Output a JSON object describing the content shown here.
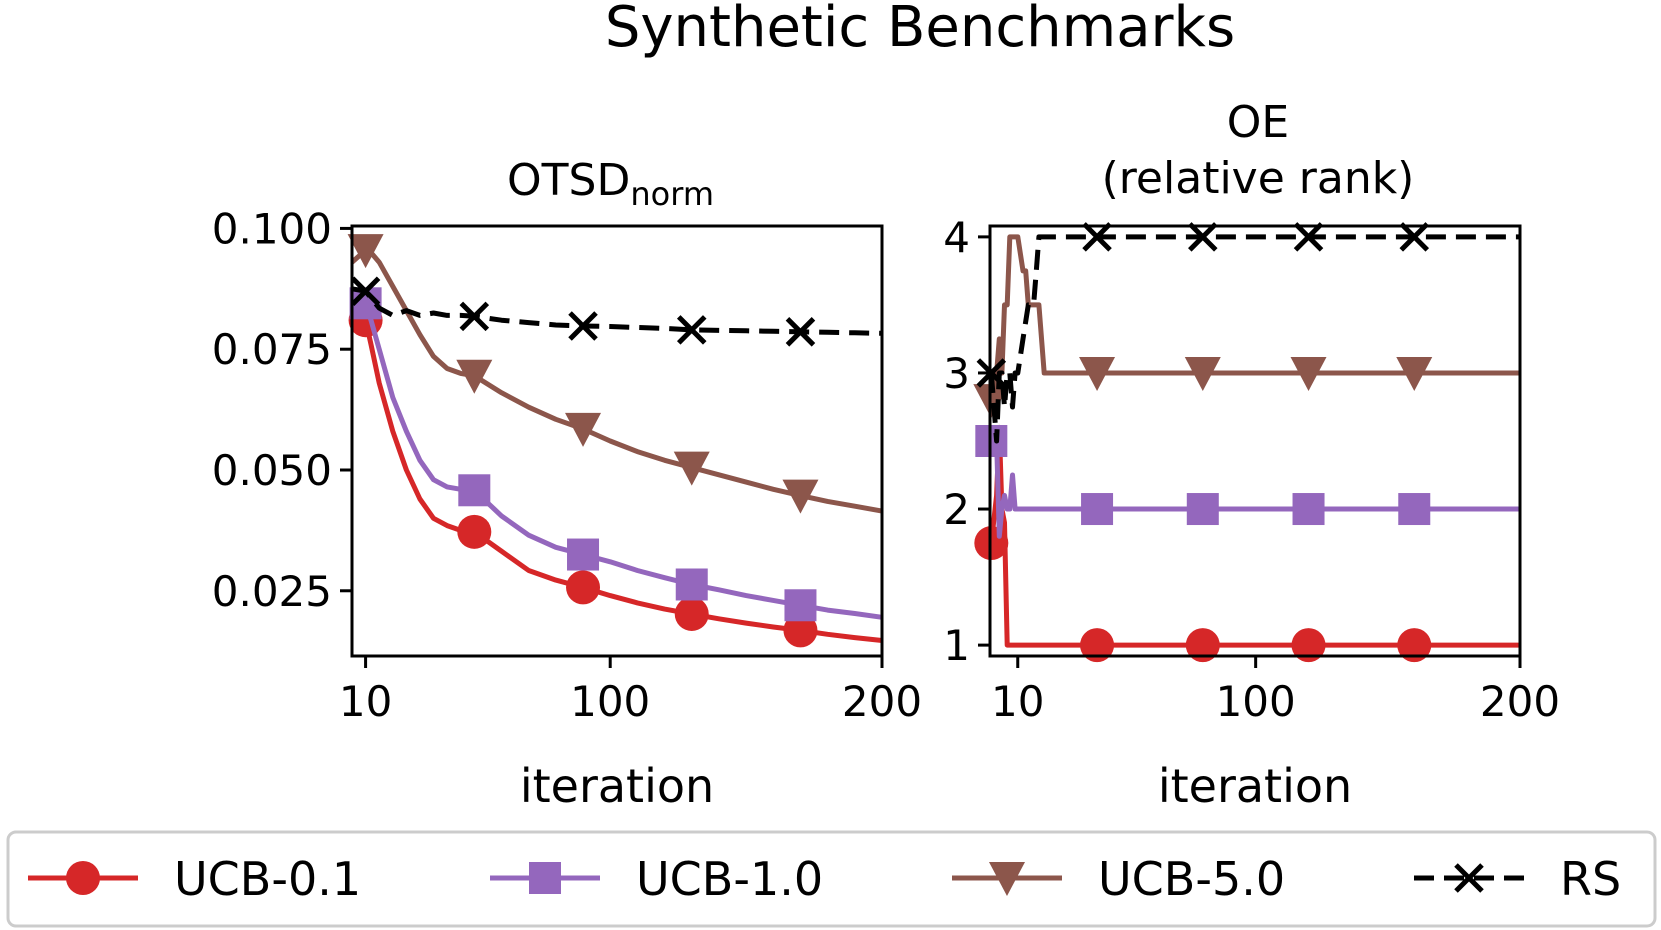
{
  "figure_title": "Synthetic Benchmarks",
  "colors": {
    "ucb01": "#d62728",
    "ucb10": "#9467bd",
    "ucb50": "#8c564b",
    "rs": "#000000"
  },
  "legend": [
    {
      "key": "ucb01",
      "label": "UCB-0.1",
      "marker": "circle",
      "dash": "solid"
    },
    {
      "key": "ucb10",
      "label": "UCB-1.0",
      "marker": "square",
      "dash": "solid"
    },
    {
      "key": "ucb50",
      "label": "UCB-5.0",
      "marker": "triangle-down",
      "dash": "solid"
    },
    {
      "key": "rs",
      "label": "RS",
      "marker": "x",
      "dash": "dashed"
    }
  ],
  "chart_data": [
    {
      "type": "line",
      "title": "OTSD",
      "title_subscript": "norm",
      "xlabel": "iteration",
      "ylabel": "",
      "xlim": [
        5,
        200
      ],
      "ylim": [
        0.0115,
        0.1005
      ],
      "xticks": [
        10,
        100,
        200
      ],
      "xtick_labels": [
        "10",
        "100",
        "200"
      ],
      "yticks": [
        0.025,
        0.05,
        0.075,
        0.1
      ],
      "ytick_labels": [
        "0.025",
        "0.050",
        "0.075",
        "0.100"
      ],
      "marker_x": [
        10,
        50,
        90,
        130,
        170
      ],
      "series": [
        {
          "key": "ucb01",
          "name": "UCB-0.1",
          "x": [
            10,
            12,
            15,
            20,
            25,
            30,
            35,
            40,
            45,
            50,
            60,
            70,
            80,
            90,
            100,
            110,
            120,
            130,
            140,
            150,
            160,
            170,
            180,
            190,
            200
          ],
          "y": [
            0.081,
            0.076,
            0.068,
            0.058,
            0.05,
            0.044,
            0.04,
            0.0385,
            0.0375,
            0.0372,
            0.0332,
            0.0292,
            0.0272,
            0.0257,
            0.024,
            0.0225,
            0.0212,
            0.0202,
            0.0192,
            0.0183,
            0.0175,
            0.0168,
            0.016,
            0.0153,
            0.0147
          ]
        },
        {
          "key": "ucb10",
          "name": "UCB-1.0",
          "x": [
            10,
            12,
            15,
            20,
            25,
            30,
            35,
            40,
            45,
            50,
            60,
            70,
            80,
            90,
            100,
            110,
            120,
            130,
            140,
            150,
            160,
            170,
            180,
            190,
            200
          ],
          "y": [
            0.0845,
            0.081,
            0.075,
            0.065,
            0.058,
            0.052,
            0.048,
            0.0465,
            0.046,
            0.0458,
            0.0405,
            0.0365,
            0.034,
            0.0325,
            0.031,
            0.0292,
            0.0277,
            0.0263,
            0.0252,
            0.024,
            0.023,
            0.022,
            0.021,
            0.0203,
            0.0195
          ]
        },
        {
          "key": "ucb50",
          "name": "UCB-5.0",
          "x": [
            5,
            10,
            12,
            15,
            20,
            25,
            30,
            35,
            40,
            45,
            50,
            60,
            70,
            80,
            90,
            100,
            110,
            120,
            130,
            140,
            150,
            160,
            170,
            180,
            190,
            200
          ],
          "y": [
            0.093,
            0.0955,
            0.095,
            0.093,
            0.088,
            0.083,
            0.078,
            0.0735,
            0.071,
            0.07,
            0.0695,
            0.066,
            0.063,
            0.0605,
            0.0585,
            0.056,
            0.0538,
            0.052,
            0.0505,
            0.049,
            0.0475,
            0.046,
            0.0447,
            0.0435,
            0.0425,
            0.0415
          ]
        },
        {
          "key": "rs",
          "name": "RS",
          "x": [
            5,
            10,
            15,
            20,
            25,
            30,
            35,
            40,
            45,
            50,
            60,
            70,
            80,
            90,
            100,
            110,
            120,
            130,
            140,
            150,
            160,
            170,
            180,
            190,
            200
          ],
          "y": [
            0.0875,
            0.087,
            0.0835,
            0.082,
            0.083,
            0.082,
            0.0825,
            0.082,
            0.082,
            0.0818,
            0.081,
            0.0805,
            0.08,
            0.0798,
            0.0797,
            0.0795,
            0.0793,
            0.079,
            0.0789,
            0.0788,
            0.0787,
            0.0786,
            0.0785,
            0.0784,
            0.0783
          ]
        }
      ]
    },
    {
      "type": "line",
      "title": "OE",
      "subtitle": "(relative rank)",
      "xlabel": "iteration",
      "ylabel": "",
      "xlim": [
        -0.5,
        200
      ],
      "ylim": [
        0.92,
        4.08
      ],
      "xticks": [
        10,
        100,
        200
      ],
      "xtick_labels": [
        "10",
        "100",
        "200"
      ],
      "yticks": [
        1,
        2,
        3,
        4
      ],
      "ytick_labels": [
        "1",
        "2",
        "3",
        "4"
      ],
      "marker_x": [
        0,
        40,
        80,
        120,
        160
      ],
      "series": [
        {
          "key": "ucb01",
          "name": "UCB-0.1",
          "x": [
            0,
            2,
            3,
            4,
            5,
            6,
            7,
            200
          ],
          "y": [
            1.75,
            2.1,
            2.6,
            2.0,
            1.9,
            1.0,
            1.0,
            1.0
          ]
        },
        {
          "key": "ucb10",
          "name": "UCB-1.0",
          "x": [
            0,
            2,
            3,
            4,
            5,
            6,
            7,
            8,
            9,
            10,
            200
          ],
          "y": [
            2.5,
            2.5,
            1.8,
            2.0,
            2.1,
            2.0,
            2.0,
            2.25,
            2.0,
            2.0,
            2.0
          ]
        },
        {
          "key": "ucb50",
          "name": "UCB-5.0",
          "x": [
            0,
            1,
            2,
            3,
            4,
            5,
            6,
            7,
            8,
            10,
            12,
            13,
            14,
            16,
            18,
            20,
            22,
            200
          ],
          "y": [
            2.8,
            2.7,
            3.0,
            3.25,
            3.0,
            3.5,
            3.5,
            4.0,
            4.0,
            4.0,
            3.75,
            3.75,
            3.5,
            3.5,
            3.5,
            3.0,
            3.0,
            3.0
          ]
        },
        {
          "key": "rs",
          "name": "RS",
          "x": [
            0,
            2,
            3,
            4,
            5,
            6,
            7,
            8,
            9,
            10,
            12,
            14,
            16,
            17,
            18,
            19,
            20,
            200
          ],
          "y": [
            3.0,
            2.5,
            3.0,
            3.0,
            2.75,
            3.0,
            3.0,
            2.75,
            3.0,
            3.0,
            3.25,
            3.5,
            3.5,
            3.75,
            4.0,
            4.0,
            4.0,
            4.0
          ]
        }
      ]
    }
  ]
}
